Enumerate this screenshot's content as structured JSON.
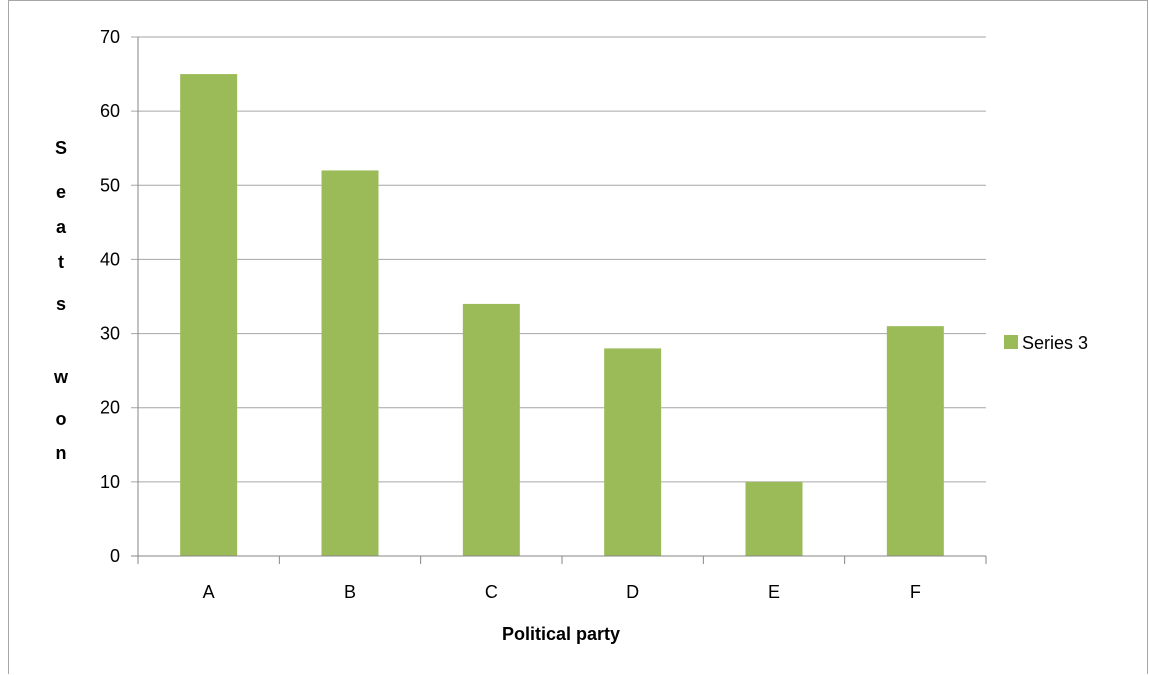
{
  "chart_data": {
    "type": "bar",
    "categories": [
      "A",
      "B",
      "C",
      "D",
      "E",
      "F"
    ],
    "series": [
      {
        "name": "Series 3",
        "values": [
          65,
          52,
          34,
          28,
          10,
          31
        ],
        "color": "#9bbb59"
      }
    ],
    "xlabel": "Political party",
    "ylabel": "Seats won",
    "ylabel_letters": [
      "S",
      "e",
      "a",
      "t",
      "s",
      "w",
      "o",
      "n"
    ],
    "ylim": [
      0,
      70
    ],
    "yticks": [
      "0",
      "10",
      "20",
      "30",
      "40",
      "50",
      "60",
      "70"
    ],
    "grid": true,
    "legend_position": "right",
    "colors": {
      "gridline": "#a6a6a6",
      "axis": "#868686",
      "bar": "#9bbb59"
    }
  }
}
